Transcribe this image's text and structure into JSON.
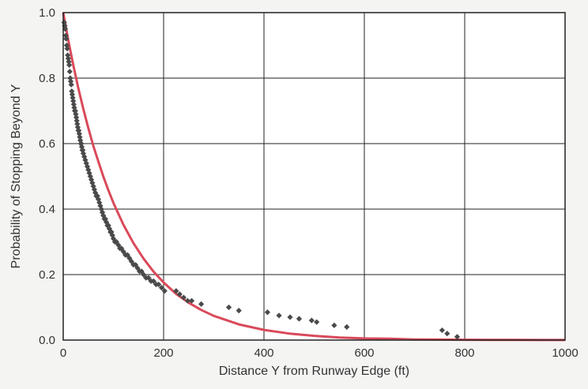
{
  "chart_data": {
    "type": "scatter",
    "title": "",
    "xlabel": "Distance Y from Runway Edge (ft)",
    "ylabel": "Probability of Stopping Beyond Y",
    "xlim": [
      0,
      1000
    ],
    "ylim": [
      0,
      1.0
    ],
    "x_ticks": [
      "0",
      "200",
      "400",
      "600",
      "800",
      "1000"
    ],
    "y_ticks": [
      "0.0",
      "0.2",
      "0.4",
      "0.6",
      "0.8",
      "1.0"
    ],
    "grid": true,
    "legend": "none",
    "colors": {
      "points": "#4a4a4a",
      "curve": "#d94a5a",
      "grid": "#222222"
    },
    "series": [
      {
        "kind": "points",
        "x": [
          2,
          3,
          4,
          5,
          6,
          7,
          8,
          9,
          10,
          11,
          12,
          13,
          14,
          15,
          16,
          17,
          18,
          19,
          20,
          21,
          22,
          23,
          24,
          25,
          26,
          27,
          28,
          29,
          30,
          31,
          32,
          33,
          34,
          35,
          36,
          37,
          38,
          39,
          40,
          42,
          44,
          46,
          48,
          50,
          52,
          54,
          56,
          58,
          60,
          62,
          64,
          66,
          68,
          70,
          72,
          74,
          76,
          78,
          80,
          82,
          84,
          86,
          88,
          90,
          92,
          94,
          96,
          98,
          100,
          103,
          106,
          110,
          113,
          116,
          120,
          124,
          128,
          132,
          136,
          140,
          144,
          148,
          152,
          156,
          160,
          165,
          170,
          175,
          180,
          185,
          190,
          196,
          202,
          225,
          232,
          240,
          248,
          256,
          275,
          330,
          350,
          407,
          430,
          452,
          470,
          495,
          505,
          540,
          565,
          755,
          765,
          785
        ],
        "y": [
          0.97,
          0.96,
          0.95,
          0.93,
          0.92,
          0.9,
          0.89,
          0.87,
          0.86,
          0.85,
          0.84,
          0.82,
          0.8,
          0.79,
          0.78,
          0.76,
          0.75,
          0.74,
          0.73,
          0.72,
          0.71,
          0.7,
          0.7,
          0.69,
          0.68,
          0.67,
          0.66,
          0.65,
          0.64,
          0.64,
          0.63,
          0.62,
          0.61,
          0.6,
          0.6,
          0.59,
          0.58,
          0.58,
          0.57,
          0.56,
          0.55,
          0.54,
          0.53,
          0.52,
          0.51,
          0.5,
          0.49,
          0.48,
          0.47,
          0.46,
          0.45,
          0.44,
          0.44,
          0.43,
          0.42,
          0.41,
          0.4,
          0.39,
          0.38,
          0.37,
          0.37,
          0.36,
          0.35,
          0.35,
          0.34,
          0.33,
          0.33,
          0.32,
          0.31,
          0.3,
          0.3,
          0.29,
          0.28,
          0.28,
          0.27,
          0.26,
          0.26,
          0.25,
          0.24,
          0.23,
          0.23,
          0.22,
          0.21,
          0.21,
          0.2,
          0.19,
          0.19,
          0.18,
          0.18,
          0.17,
          0.17,
          0.16,
          0.15,
          0.15,
          0.14,
          0.13,
          0.12,
          0.12,
          0.11,
          0.1,
          0.09,
          0.085,
          0.075,
          0.07,
          0.065,
          0.06,
          0.055,
          0.045,
          0.04,
          0.03,
          0.02,
          0.01
        ]
      },
      {
        "kind": "curve",
        "function": "exp(-x/115)",
        "x": [
          0,
          5,
          10,
          15,
          20,
          25,
          30,
          40,
          50,
          60,
          70,
          80,
          90,
          100,
          120,
          140,
          160,
          180,
          200,
          225,
          250,
          275,
          300,
          350,
          400,
          450,
          500,
          550,
          600,
          650,
          700,
          750,
          800,
          850,
          900,
          950,
          1000
        ],
        "y": [
          1.0,
          0.958,
          0.917,
          0.878,
          0.84,
          0.805,
          0.77,
          0.706,
          0.647,
          0.593,
          0.545,
          0.499,
          0.457,
          0.419,
          0.352,
          0.296,
          0.249,
          0.209,
          0.176,
          0.141,
          0.114,
          0.092,
          0.074,
          0.048,
          0.031,
          0.02,
          0.013,
          0.008,
          0.005,
          0.004,
          0.002,
          0.0015,
          0.001,
          0.0006,
          0.0004,
          0.0003,
          0.0002
        ]
      }
    ]
  }
}
